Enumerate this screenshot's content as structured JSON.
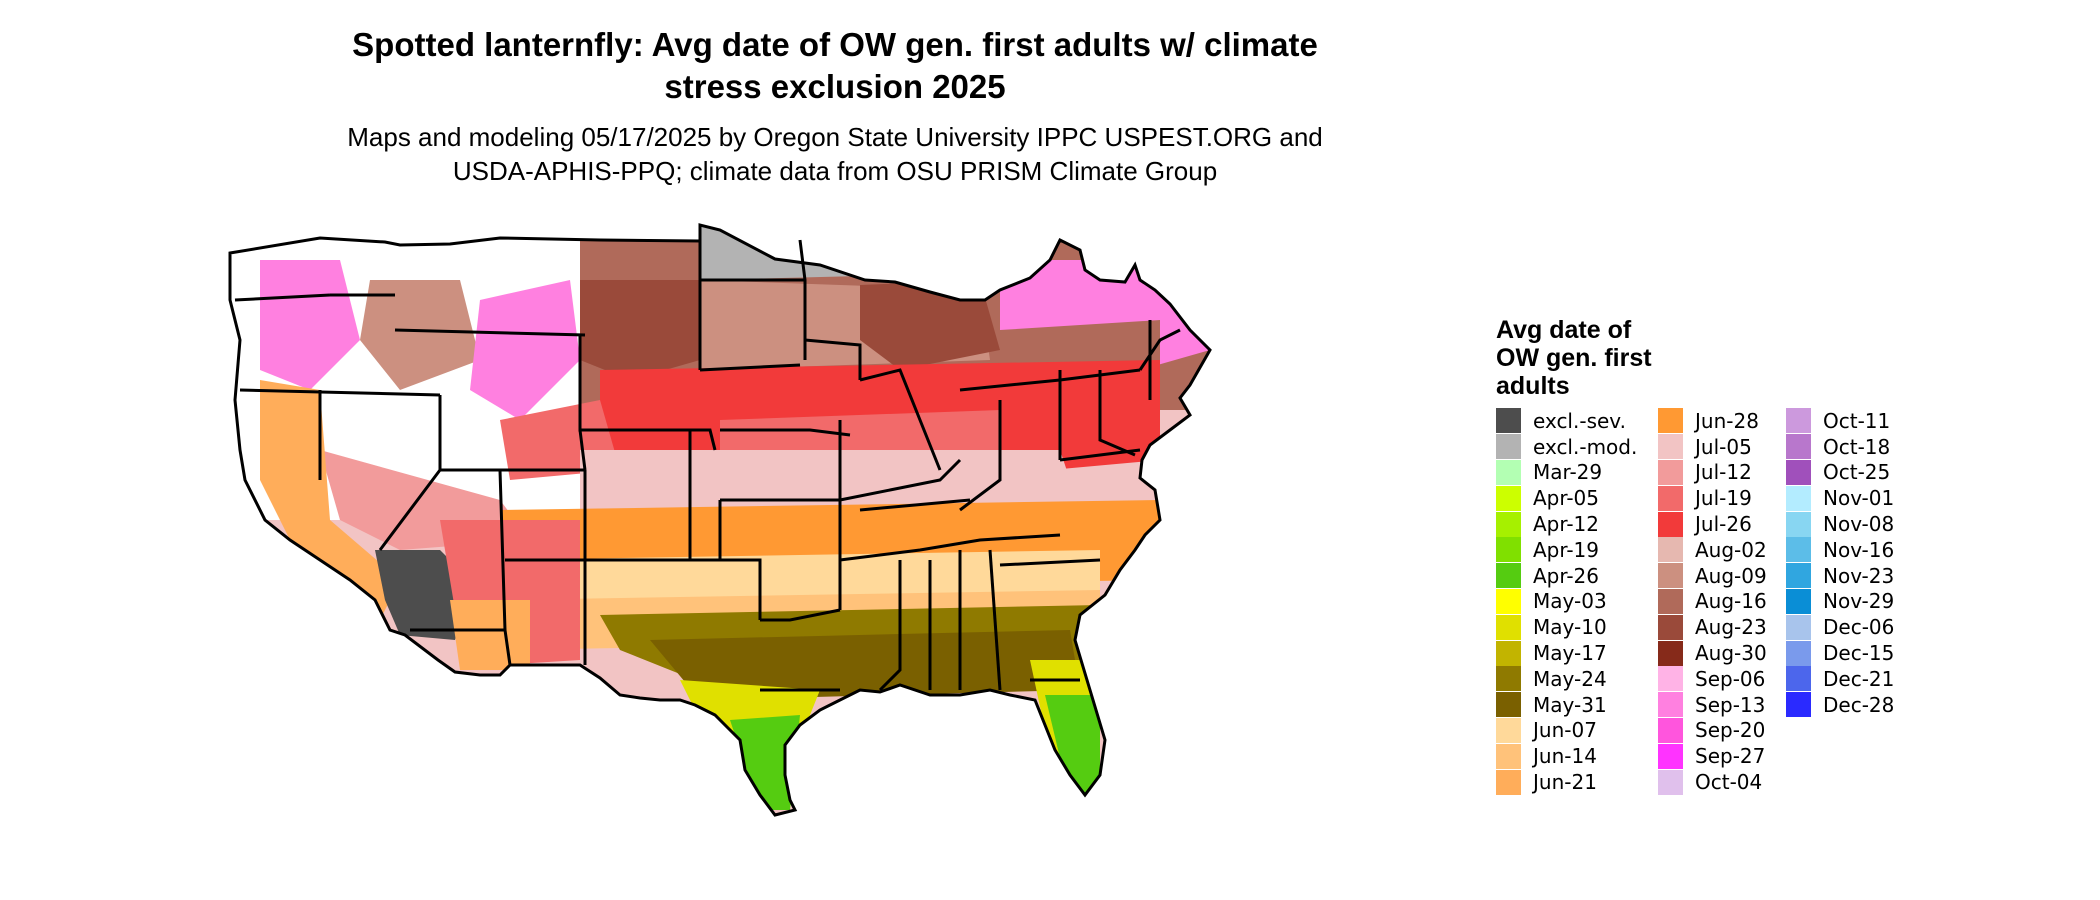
{
  "title_line1": "Spotted lanternfly: Avg date of OW gen. first adults w/ climate",
  "title_line2": "stress exclusion 2025",
  "subtitle_line1": "Maps and modeling 05/17/2025 by Oregon State University IPPC USPEST.ORG and",
  "subtitle_line2": "USDA-APHIS-PPQ; climate data from OSU PRISM Climate Group",
  "legend": {
    "title_line1": "Avg date of",
    "title_line2": "OW gen. first",
    "title_line3": "adults",
    "columns": [
      [
        {
          "label": "excl.-sev.",
          "color": "#4d4d4d"
        },
        {
          "label": "excl.-mod.",
          "color": "#b3b3b3"
        },
        {
          "label": "Mar-29",
          "color": "#b3ffb3"
        },
        {
          "label": "Apr-05",
          "color": "#ccff00"
        },
        {
          "label": "Apr-12",
          "color": "#a6f000"
        },
        {
          "label": "Apr-19",
          "color": "#80e000"
        },
        {
          "label": "Apr-26",
          "color": "#55cc11"
        },
        {
          "label": "May-03",
          "color": "#ffff00"
        },
        {
          "label": "May-10",
          "color": "#e0e000"
        },
        {
          "label": "May-17",
          "color": "#c2b400"
        },
        {
          "label": "May-24",
          "color": "#8f7a00"
        },
        {
          "label": "May-31",
          "color": "#7a6000"
        },
        {
          "label": "Jun-07",
          "color": "#ffd99a"
        },
        {
          "label": "Jun-14",
          "color": "#ffc27a"
        },
        {
          "label": "Jun-21",
          "color": "#ffad5a"
        }
      ],
      [
        {
          "label": "Jun-28",
          "color": "#ff9933"
        },
        {
          "label": "Jul-05",
          "color": "#f2c4c4"
        },
        {
          "label": "Jul-12",
          "color": "#f29b9b"
        },
        {
          "label": "Jul-19",
          "color": "#f26a6a"
        },
        {
          "label": "Jul-26",
          "color": "#f23a3a"
        },
        {
          "label": "Aug-02",
          "color": "#e6b8b0"
        },
        {
          "label": "Aug-09",
          "color": "#cc9080"
        },
        {
          "label": "Aug-16",
          "color": "#b06a5a"
        },
        {
          "label": "Aug-23",
          "color": "#9a4a3a"
        },
        {
          "label": "Aug-30",
          "color": "#862a1a"
        },
        {
          "label": "Sep-06",
          "color": "#ffb3e6"
        },
        {
          "label": "Sep-13",
          "color": "#ff80e0"
        },
        {
          "label": "Sep-20",
          "color": "#ff55dd"
        },
        {
          "label": "Sep-27",
          "color": "#ff33ff"
        },
        {
          "label": "Oct-04",
          "color": "#e0c0ec"
        }
      ],
      [
        {
          "label": "Oct-11",
          "color": "#cc99dd"
        },
        {
          "label": "Oct-18",
          "color": "#b877cc"
        },
        {
          "label": "Oct-25",
          "color": "#a050bb"
        },
        {
          "label": "Nov-01",
          "color": "#b3ecff"
        },
        {
          "label": "Nov-08",
          "color": "#88d6f2"
        },
        {
          "label": "Nov-16",
          "color": "#5cbde8"
        },
        {
          "label": "Nov-23",
          "color": "#30a6e0"
        },
        {
          "label": "Nov-29",
          "color": "#0a8ed6"
        },
        {
          "label": "Dec-06",
          "color": "#a8c4ec"
        },
        {
          "label": "Dec-15",
          "color": "#7a9aec"
        },
        {
          "label": "Dec-21",
          "color": "#4c66ec"
        },
        {
          "label": "Dec-28",
          "color": "#2a2aff"
        }
      ]
    ]
  }
}
